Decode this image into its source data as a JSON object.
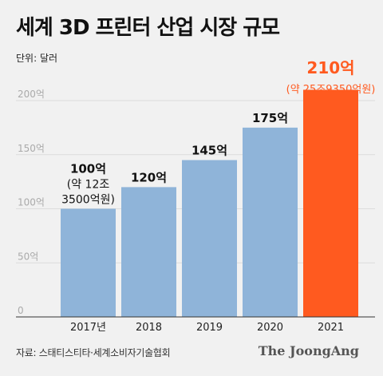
{
  "header": {
    "title": "세계 3D 프린터 산업 시장 규모",
    "unit": "단위: 달러"
  },
  "footer": {
    "source": "자료: 스태티스티타·세계소비자기술협회",
    "brand": "The JoongAng"
  },
  "colors": {
    "bar": "#8fb4d9",
    "highlight": "#ff5a1f",
    "grid": "#dcdcdc",
    "tick": "#aaaaaa"
  },
  "chart_data": {
    "type": "bar",
    "categories": [
      "2017년",
      "2018",
      "2019",
      "2020",
      "2021"
    ],
    "values": [
      100,
      120,
      145,
      175,
      210
    ],
    "value_labels": [
      "100억",
      "120억",
      "145억",
      "175억",
      "210억"
    ],
    "sub_labels": [
      [
        "(약 12조",
        "3500억원)"
      ],
      [],
      [],
      [],
      [
        "(약 25조9350억원)"
      ]
    ],
    "highlight_index": 4,
    "yticks": [
      "0",
      "50억",
      "100억",
      "150억",
      "200억"
    ],
    "ytick_values": [
      0,
      50,
      100,
      150,
      200
    ],
    "ylim": [
      0,
      210
    ],
    "grid": true
  }
}
